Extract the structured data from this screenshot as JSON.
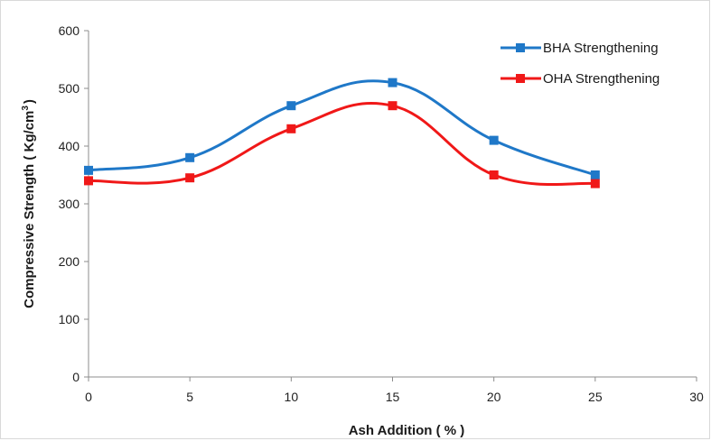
{
  "chart_data": {
    "type": "line",
    "title": "",
    "xlabel": "Ash Addition ( % )",
    "ylabel_main": "Compressive Strength ( Kg/cm",
    "ylabel_sup": "3",
    "ylabel_tail": ")",
    "xlim": [
      0,
      30
    ],
    "ylim": [
      0,
      600
    ],
    "x_ticks": [
      0,
      5,
      10,
      15,
      20,
      25,
      30
    ],
    "y_ticks": [
      0,
      100,
      200,
      300,
      400,
      500,
      600
    ],
    "legend_position": "top-right",
    "grid": false,
    "x": [
      0,
      5,
      10,
      15,
      20,
      25
    ],
    "series": [
      {
        "name": "BHA Strengthening",
        "color": "#1f78c8",
        "values": [
          358,
          380,
          470,
          510,
          410,
          350
        ]
      },
      {
        "name": "OHA Strengthening",
        "color": "#f01818",
        "values": [
          340,
          345,
          430,
          470,
          350,
          335
        ]
      }
    ]
  }
}
